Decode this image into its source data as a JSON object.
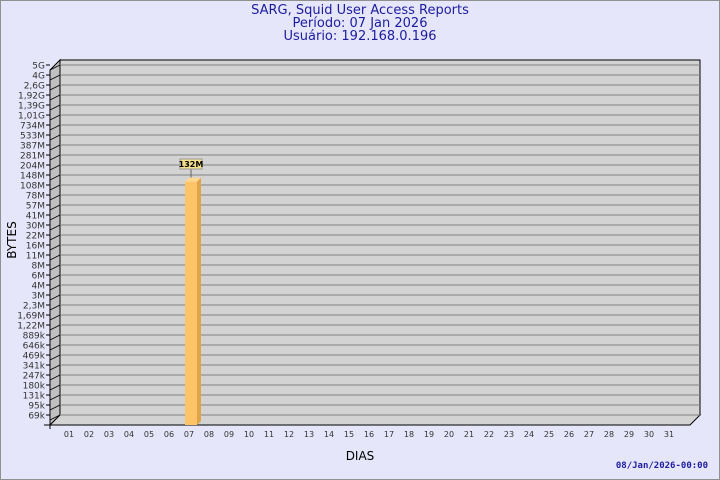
{
  "header": {
    "title": "SARG, Squid User Access Reports",
    "period": "Período: 07 Jan 2026",
    "user": "Usuário: 192.168.0.196"
  },
  "footer": {
    "timestamp": "08/Jan/2026-00:00"
  },
  "colors": {
    "background": "#e6e6fa",
    "plot": "#d3d3d3",
    "bar": "#ffc468",
    "title": "#1c1ca0"
  },
  "chart_data": {
    "type": "bar",
    "xlabel": "DIAS",
    "ylabel": "BYTES",
    "y_scale": "log",
    "grid": true,
    "categories": [
      "01",
      "02",
      "03",
      "04",
      "05",
      "06",
      "07",
      "08",
      "09",
      "10",
      "11",
      "12",
      "13",
      "14",
      "15",
      "16",
      "17",
      "18",
      "19",
      "20",
      "21",
      "22",
      "23",
      "24",
      "25",
      "26",
      "27",
      "28",
      "29",
      "30",
      "31"
    ],
    "y_ticks": [
      "5G",
      "4G",
      "2,6G",
      "1,92G",
      "1,39G",
      "1,01G",
      "734M",
      "533M",
      "387M",
      "281M",
      "204M",
      "148M",
      "108M",
      "78M",
      "57M",
      "41M",
      "30M",
      "22M",
      "16M",
      "11M",
      "8M",
      "6M",
      "4M",
      "3M",
      "2,3M",
      "1,69M",
      "1,22M",
      "889k",
      "646k",
      "469k",
      "341k",
      "247k",
      "180k",
      "131k",
      "95k",
      "69k"
    ],
    "bars": [
      {
        "category": "07",
        "value": 132000000,
        "label": "132M"
      }
    ]
  }
}
